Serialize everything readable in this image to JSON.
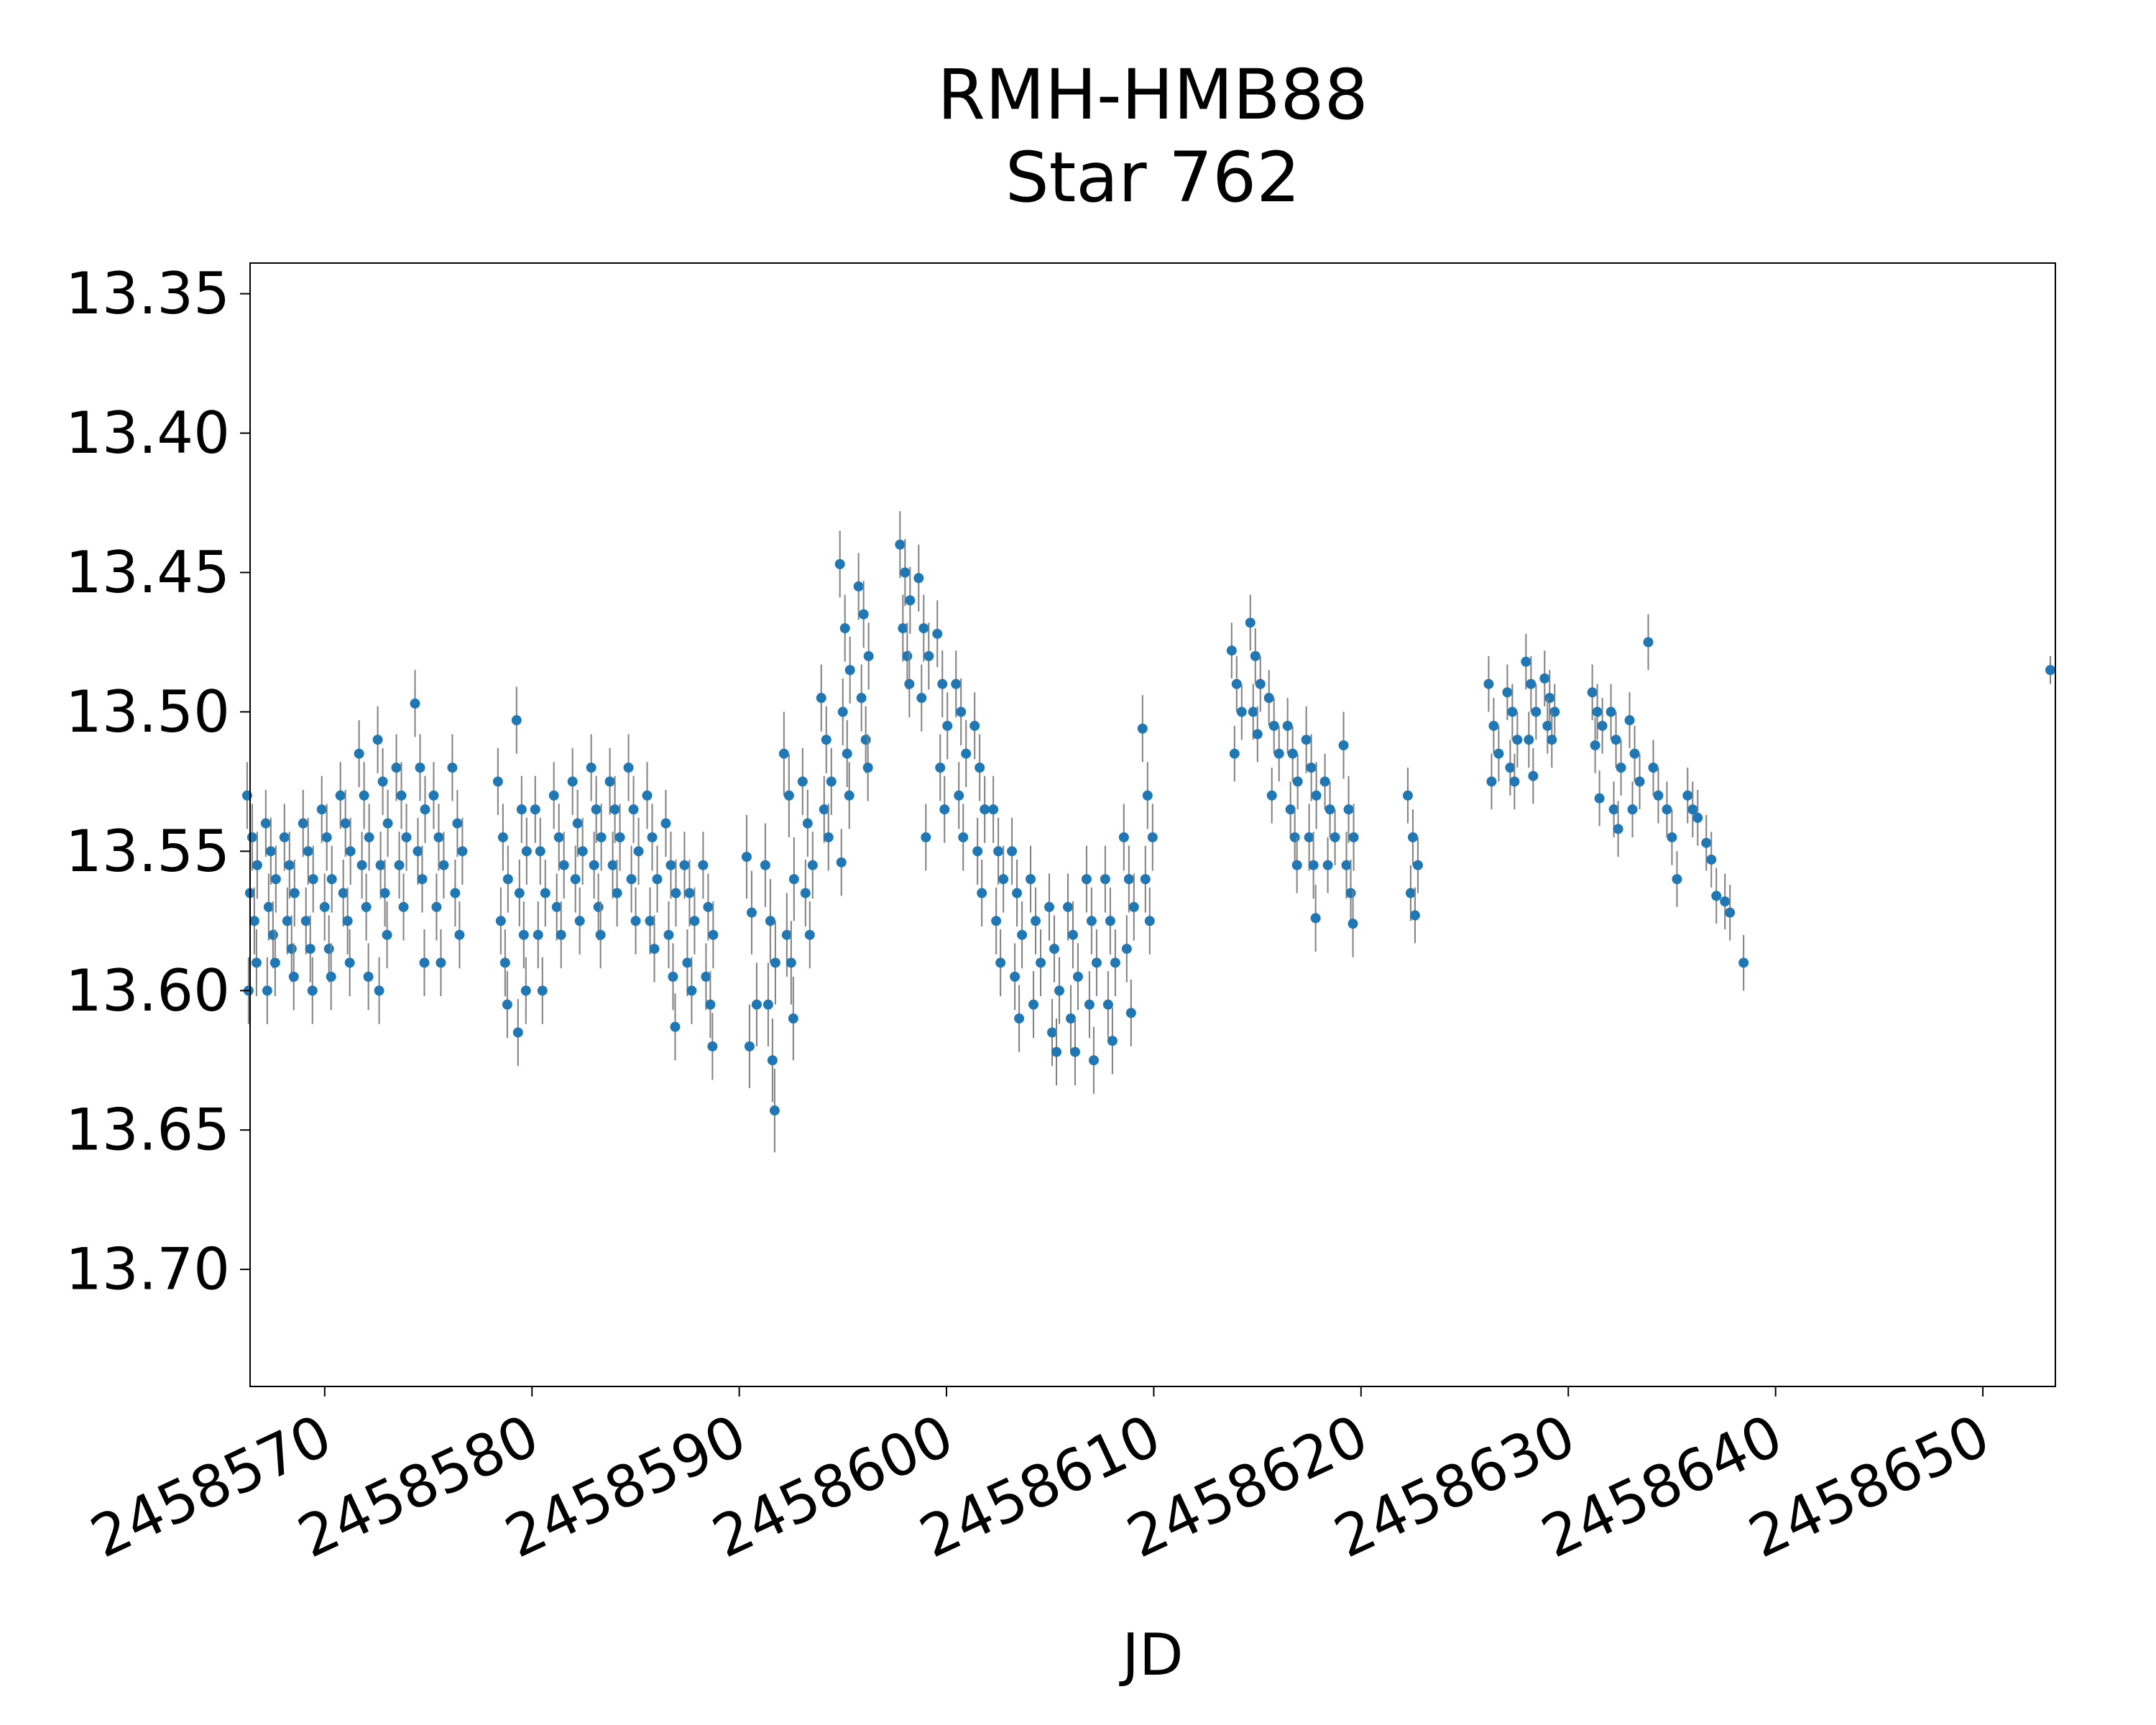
{
  "chart_data": {
    "type": "scatter",
    "title": "RMH-HMB88",
    "subtitle": "Star 762",
    "xlabel": "JD",
    "ylabel": "",
    "xlim": [
      2458566.4,
      2458653.5
    ],
    "ylim": [
      13.742,
      13.339
    ],
    "y_inverted": true,
    "grid": false,
    "legend": "none",
    "marker_color": "#1f77b4",
    "errorbar_color": "#808080",
    "x_ticks": [
      2458570,
      2458580,
      2458590,
      2458600,
      2458610,
      2458620,
      2458630,
      2458640,
      2458650
    ],
    "x_tick_labels": [
      "2458570",
      "2458580",
      "2458590",
      "2458600",
      "2458610",
      "2458620",
      "2458630",
      "2458640",
      "2458650"
    ],
    "y_ticks": [
      13.35,
      13.4,
      13.45,
      13.5,
      13.55,
      13.6,
      13.65,
      13.7
    ],
    "y_tick_labels": [
      "13.35",
      "13.40",
      "13.45",
      "13.50",
      "13.55",
      "13.60",
      "13.65",
      "13.70"
    ],
    "clusters": [
      {
        "x": 2458566.5,
        "ys": [
          13.53,
          13.545,
          13.555,
          13.565,
          13.575,
          13.59,
          13.6
        ],
        "err": 0.012
      },
      {
        "x": 2458567.4,
        "ys": [
          13.54,
          13.55,
          13.56,
          13.57,
          13.58,
          13.59,
          13.6
        ],
        "err": 0.012
      },
      {
        "x": 2458568.3,
        "ys": [
          13.545,
          13.555,
          13.565,
          13.575,
          13.585,
          13.595
        ],
        "err": 0.012
      },
      {
        "x": 2458569.2,
        "ys": [
          13.54,
          13.55,
          13.56,
          13.575,
          13.585,
          13.6
        ],
        "err": 0.012
      },
      {
        "x": 2458570.1,
        "ys": [
          13.535,
          13.545,
          13.56,
          13.57,
          13.585,
          13.595
        ],
        "err": 0.012
      },
      {
        "x": 2458571.0,
        "ys": [
          13.53,
          13.54,
          13.55,
          13.565,
          13.575,
          13.59
        ],
        "err": 0.012
      },
      {
        "x": 2458571.9,
        "ys": [
          13.515,
          13.53,
          13.545,
          13.555,
          13.57,
          13.595
        ],
        "err": 0.012
      },
      {
        "x": 2458572.8,
        "ys": [
          13.51,
          13.525,
          13.54,
          13.555,
          13.565,
          13.58,
          13.6
        ],
        "err": 0.012
      },
      {
        "x": 2458573.7,
        "ys": [
          13.52,
          13.53,
          13.545,
          13.555,
          13.57
        ],
        "err": 0.012
      },
      {
        "x": 2458574.6,
        "ys": [
          13.497,
          13.52,
          13.535,
          13.55,
          13.56,
          13.59
        ],
        "err": 0.012
      },
      {
        "x": 2458575.5,
        "ys": [
          13.53,
          13.545,
          13.555,
          13.57,
          13.59
        ],
        "err": 0.012
      },
      {
        "x": 2458576.4,
        "ys": [
          13.52,
          13.54,
          13.55,
          13.565,
          13.58
        ],
        "err": 0.012
      },
      {
        "x": 2458578.6,
        "ys": [
          13.525,
          13.545,
          13.56,
          13.575,
          13.59,
          13.605
        ],
        "err": 0.012
      },
      {
        "x": 2458579.5,
        "ys": [
          13.503,
          13.535,
          13.55,
          13.565,
          13.58,
          13.6,
          13.615
        ],
        "err": 0.012
      },
      {
        "x": 2458580.4,
        "ys": [
          13.535,
          13.55,
          13.565,
          13.58,
          13.6
        ],
        "err": 0.012
      },
      {
        "x": 2458581.3,
        "ys": [
          13.53,
          13.545,
          13.555,
          13.57,
          13.58
        ],
        "err": 0.012
      },
      {
        "x": 2458582.2,
        "ys": [
          13.525,
          13.54,
          13.55,
          13.56,
          13.575
        ],
        "err": 0.012
      },
      {
        "x": 2458583.1,
        "ys": [
          13.52,
          13.535,
          13.545,
          13.555,
          13.57,
          13.58
        ],
        "err": 0.012
      },
      {
        "x": 2458584.0,
        "ys": [
          13.525,
          13.535,
          13.545,
          13.555,
          13.565
        ],
        "err": 0.012
      },
      {
        "x": 2458584.9,
        "ys": [
          13.52,
          13.535,
          13.55,
          13.56,
          13.575
        ],
        "err": 0.012
      },
      {
        "x": 2458585.8,
        "ys": [
          13.53,
          13.545,
          13.56,
          13.575,
          13.585
        ],
        "err": 0.012
      },
      {
        "x": 2458586.7,
        "ys": [
          13.54,
          13.555,
          13.565,
          13.58,
          13.595,
          13.613
        ],
        "err": 0.012
      },
      {
        "x": 2458587.6,
        "ys": [
          13.555,
          13.565,
          13.575,
          13.59,
          13.6
        ],
        "err": 0.012
      },
      {
        "x": 2458588.5,
        "ys": [
          13.555,
          13.57,
          13.58,
          13.595,
          13.605,
          13.62
        ],
        "err": 0.012
      },
      {
        "x": 2458590.6,
        "ys": [
          13.552,
          13.572,
          13.605,
          13.62
        ],
        "err": 0.015
      },
      {
        "x": 2458591.5,
        "ys": [
          13.555,
          13.575,
          13.59,
          13.605,
          13.625,
          13.643
        ],
        "err": 0.015
      },
      {
        "x": 2458592.4,
        "ys": [
          13.515,
          13.53,
          13.56,
          13.58,
          13.59,
          13.61
        ],
        "err": 0.015
      },
      {
        "x": 2458593.3,
        "ys": [
          13.525,
          13.54,
          13.555,
          13.565,
          13.58
        ],
        "err": 0.012
      },
      {
        "x": 2458594.2,
        "ys": [
          13.495,
          13.51,
          13.525,
          13.535,
          13.545
        ],
        "err": 0.012
      },
      {
        "x": 2458595.1,
        "ys": [
          13.447,
          13.47,
          13.485,
          13.5,
          13.515,
          13.53,
          13.554
        ],
        "err": 0.012
      },
      {
        "x": 2458596.0,
        "ys": [
          13.455,
          13.465,
          13.48,
          13.495,
          13.51,
          13.52
        ],
        "err": 0.012
      },
      {
        "x": 2458598.0,
        "ys": [
          13.44,
          13.45,
          13.46,
          13.47,
          13.48,
          13.49
        ],
        "err": 0.012
      },
      {
        "x": 2458598.9,
        "ys": [
          13.452,
          13.47,
          13.48,
          13.495,
          13.545
        ],
        "err": 0.012
      },
      {
        "x": 2458599.8,
        "ys": [
          13.472,
          13.49,
          13.505,
          13.52,
          13.535
        ],
        "err": 0.012
      },
      {
        "x": 2458600.7,
        "ys": [
          13.49,
          13.5,
          13.515,
          13.53,
          13.545
        ],
        "err": 0.012
      },
      {
        "x": 2458601.6,
        "ys": [
          13.505,
          13.52,
          13.535,
          13.55,
          13.565
        ],
        "err": 0.012
      },
      {
        "x": 2458602.5,
        "ys": [
          13.535,
          13.55,
          13.56,
          13.575,
          13.59
        ],
        "err": 0.012
      },
      {
        "x": 2458603.4,
        "ys": [
          13.55,
          13.565,
          13.58,
          13.595,
          13.61
        ],
        "err": 0.012
      },
      {
        "x": 2458604.3,
        "ys": [
          13.56,
          13.575,
          13.59,
          13.605
        ],
        "err": 0.012
      },
      {
        "x": 2458605.2,
        "ys": [
          13.57,
          13.585,
          13.6,
          13.615,
          13.622
        ],
        "err": 0.012
      },
      {
        "x": 2458606.1,
        "ys": [
          13.57,
          13.58,
          13.595,
          13.61,
          13.622
        ],
        "err": 0.012
      },
      {
        "x": 2458607.0,
        "ys": [
          13.56,
          13.575,
          13.59,
          13.605,
          13.625
        ],
        "err": 0.012
      },
      {
        "x": 2458607.9,
        "ys": [
          13.56,
          13.575,
          13.59,
          13.605,
          13.618
        ],
        "err": 0.012
      },
      {
        "x": 2458608.8,
        "ys": [
          13.545,
          13.56,
          13.57,
          13.585,
          13.608
        ],
        "err": 0.012
      },
      {
        "x": 2458609.7,
        "ys": [
          13.506,
          13.53,
          13.545,
          13.56,
          13.575
        ],
        "err": 0.012
      },
      {
        "x": 2458614.0,
        "ys": [
          13.478,
          13.49,
          13.5,
          13.515
        ],
        "err": 0.01
      },
      {
        "x": 2458614.9,
        "ys": [
          13.468,
          13.48,
          13.49,
          13.5,
          13.508
        ],
        "err": 0.01
      },
      {
        "x": 2458615.8,
        "ys": [
          13.495,
          13.505,
          13.515,
          13.53
        ],
        "err": 0.01
      },
      {
        "x": 2458616.7,
        "ys": [
          13.505,
          13.515,
          13.525,
          13.535,
          13.545,
          13.555
        ],
        "err": 0.01
      },
      {
        "x": 2458617.6,
        "ys": [
          13.51,
          13.52,
          13.53,
          13.545,
          13.555,
          13.574
        ],
        "err": 0.012
      },
      {
        "x": 2458618.5,
        "ys": [
          13.525,
          13.535,
          13.545,
          13.555
        ],
        "err": 0.01
      },
      {
        "x": 2458619.4,
        "ys": [
          13.512,
          13.535,
          13.545,
          13.555,
          13.565,
          13.576
        ],
        "err": 0.012
      },
      {
        "x": 2458622.5,
        "ys": [
          13.53,
          13.545,
          13.555,
          13.565,
          13.573
        ],
        "err": 0.01
      },
      {
        "x": 2458626.4,
        "ys": [
          13.49,
          13.505,
          13.515,
          13.525
        ],
        "err": 0.01
      },
      {
        "x": 2458627.3,
        "ys": [
          13.493,
          13.5,
          13.51,
          13.52,
          13.525
        ],
        "err": 0.01
      },
      {
        "x": 2458628.2,
        "ys": [
          13.482,
          13.49,
          13.5,
          13.51,
          13.523
        ],
        "err": 0.01
      },
      {
        "x": 2458629.1,
        "ys": [
          13.488,
          13.495,
          13.5,
          13.505,
          13.51
        ],
        "err": 0.01
      },
      {
        "x": 2458631.4,
        "ys": [
          13.493,
          13.5,
          13.505,
          13.512,
          13.531
        ],
        "err": 0.01
      },
      {
        "x": 2458632.3,
        "ys": [
          13.5,
          13.51,
          13.52,
          13.535,
          13.542
        ],
        "err": 0.01
      },
      {
        "x": 2458633.2,
        "ys": [
          13.503,
          13.515,
          13.525,
          13.535
        ],
        "err": 0.01
      },
      {
        "x": 2458634.1,
        "ys": [
          13.475,
          13.52,
          13.53
        ],
        "err": 0.01
      },
      {
        "x": 2458635.0,
        "ys": [
          13.535,
          13.545,
          13.56
        ],
        "err": 0.01
      },
      {
        "x": 2458636.0,
        "ys": [
          13.53,
          13.535,
          13.538
        ],
        "err": 0.01
      },
      {
        "x": 2458636.9,
        "ys": [
          13.547,
          13.553,
          13.566
        ],
        "err": 0.01
      },
      {
        "x": 2458637.8,
        "ys": [
          13.568,
          13.572
        ],
        "err": 0.01
      },
      {
        "x": 2458638.7,
        "ys": [
          13.59
        ],
        "err": 0.01
      },
      {
        "x": 2458653.5,
        "ys": [
          13.485
        ],
        "err": 0.005
      }
    ]
  }
}
